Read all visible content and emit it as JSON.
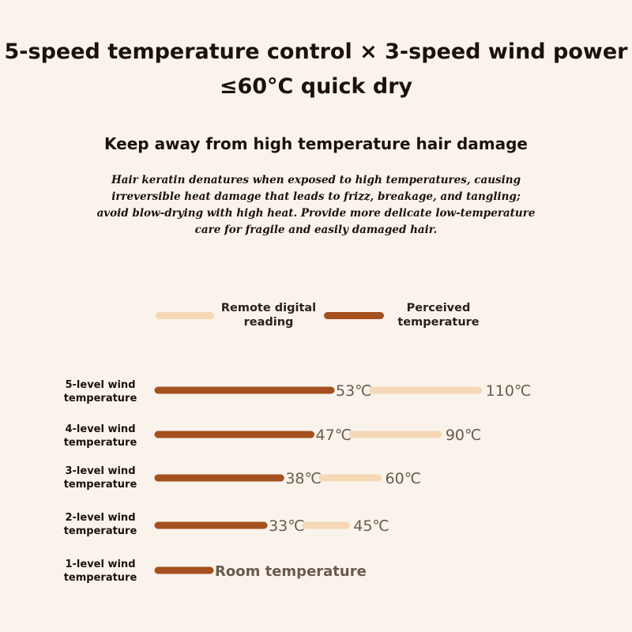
{
  "headline": {
    "line1": "5-speed temperature control × 3-speed wind power",
    "line2": "≤60°C quick dry"
  },
  "subtitle": "Keep away from high temperature hair damage",
  "description": "Hair keratin denatures when exposed to high temperatures, causing irreversible heat damage that leads to frizz, breakage, and tangling; avoid blow-drying with high heat. Provide more delicate low-temperature care for fragile and easily damaged hair.",
  "colors": {
    "perceived": "#a5501f",
    "remote": "#f5d8b6",
    "background": "#f9f3ec"
  },
  "chart_data": {
    "type": "bar",
    "orientation": "horizontal",
    "legend": [
      {
        "name": "Remote digital reading",
        "color": "#f5d8b6"
      },
      {
        "name": "Perceived temperature",
        "color": "#a5501f"
      }
    ],
    "legend_placement": "top",
    "categories": [
      "5-level wind temperature",
      "4-level wind temperature",
      "3-level wind temperature",
      "2-level wind temperature",
      "1-level wind temperature"
    ],
    "series": [
      {
        "name": "Perceived temperature",
        "values": [
          53,
          47,
          38,
          33,
          null
        ],
        "labels": [
          "53℃",
          "47℃",
          "38℃",
          "33℃",
          "Room temperature"
        ]
      },
      {
        "name": "Remote digital reading",
        "values": [
          110,
          90,
          60,
          45,
          null
        ],
        "labels": [
          "110℃",
          "90℃",
          "60℃",
          "45℃",
          ""
        ]
      }
    ],
    "grid": false
  }
}
